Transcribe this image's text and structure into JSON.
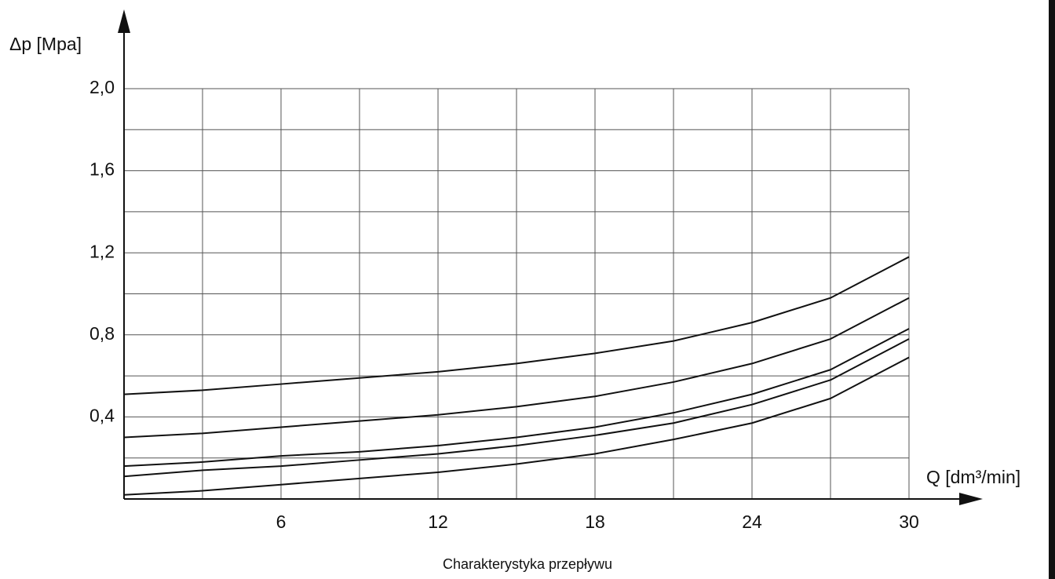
{
  "chart_data": {
    "type": "line",
    "y_label": "Δp [Mpa]",
    "x_label": "Q [dm³/min]",
    "caption": "Charakterystyka przepływu",
    "x": [
      0,
      3,
      6,
      9,
      12,
      15,
      18,
      21,
      24,
      27,
      30
    ],
    "series": [
      {
        "color": "#111111",
        "values": [
          0.51,
          0.53,
          0.56,
          0.59,
          0.62,
          0.66,
          0.71,
          0.77,
          0.86,
          0.98,
          1.18
        ]
      },
      {
        "color": "#111111",
        "values": [
          0.3,
          0.32,
          0.35,
          0.38,
          0.41,
          0.45,
          0.5,
          0.57,
          0.66,
          0.78,
          0.98
        ]
      },
      {
        "color": "#111111",
        "values": [
          0.16,
          0.18,
          0.21,
          0.23,
          0.26,
          0.3,
          0.35,
          0.42,
          0.51,
          0.63,
          0.83
        ]
      },
      {
        "color": "#111111",
        "values": [
          0.11,
          0.14,
          0.16,
          0.19,
          0.22,
          0.26,
          0.31,
          0.37,
          0.46,
          0.58,
          0.78
        ]
      },
      {
        "color": "#111111",
        "values": [
          0.02,
          0.04,
          0.07,
          0.1,
          0.13,
          0.17,
          0.22,
          0.29,
          0.37,
          0.49,
          0.69
        ]
      }
    ],
    "xlim": [
      0,
      30
    ],
    "ylim": [
      0,
      2
    ],
    "xticks": [
      6,
      12,
      18,
      24,
      30
    ],
    "yticks": [
      {
        "value": 0.4,
        "label": "0,4"
      },
      {
        "value": 0.8,
        "label": "0,8"
      },
      {
        "value": 1.2,
        "label": "1,2"
      },
      {
        "value": 1.6,
        "label": "1,6"
      },
      {
        "value": 2.0,
        "label": "2,0"
      }
    ],
    "x_minor_grid": [
      3,
      9,
      15,
      21,
      27
    ],
    "y_minor_grid": [
      0.2,
      0.6,
      1.0,
      1.4,
      1.8
    ],
    "grid": true
  }
}
